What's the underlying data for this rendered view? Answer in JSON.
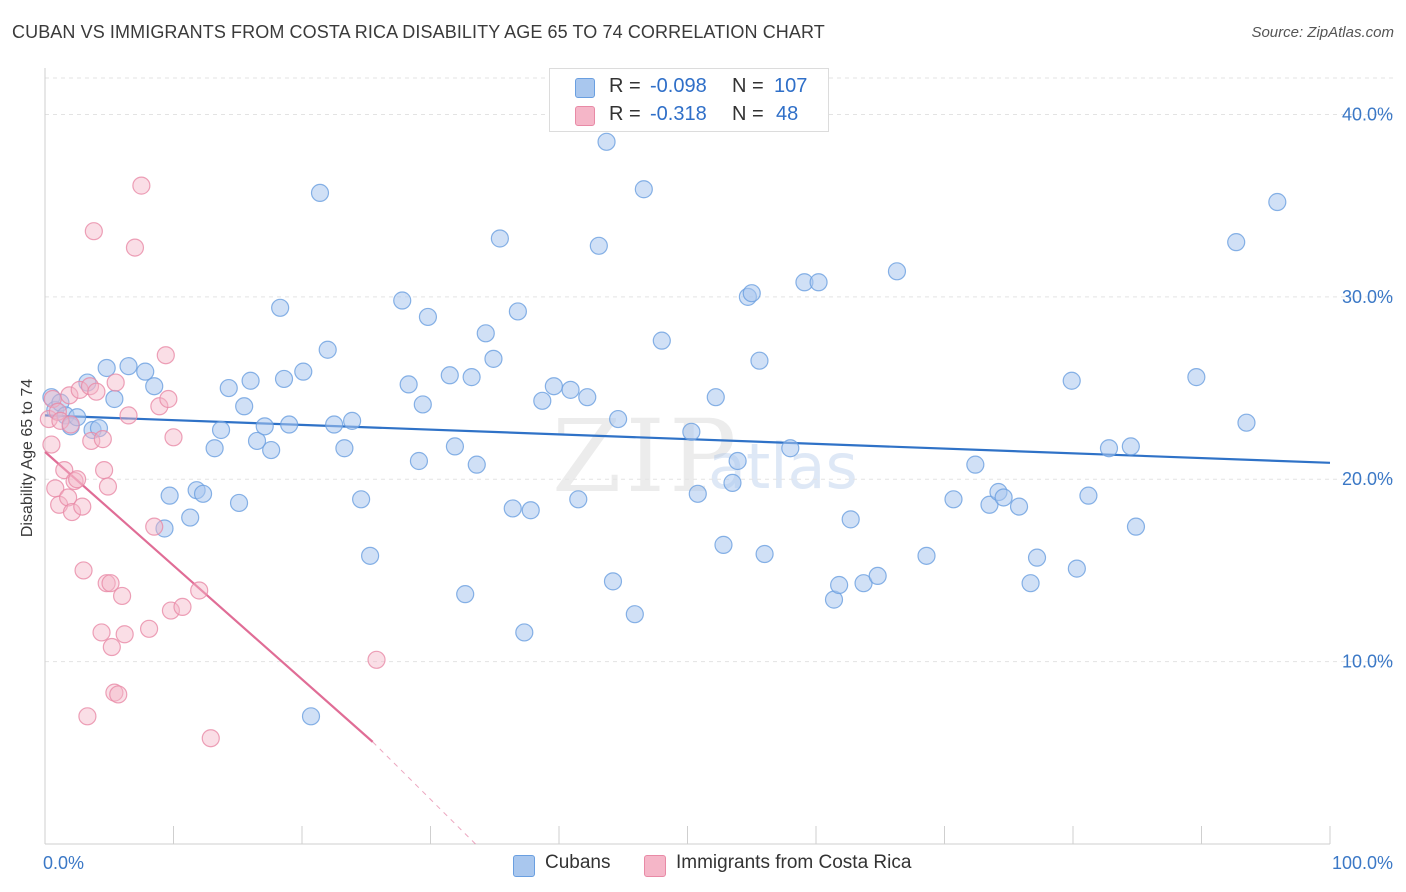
{
  "title": "CUBAN VS IMMIGRANTS FROM COSTA RICA DISABILITY AGE 65 TO 74 CORRELATION CHART",
  "source": "Source: ZipAtlas.com",
  "watermark": {
    "zip": "ZIP",
    "atlas": "atlas"
  },
  "legend": {
    "rows": [
      {
        "r_label": "R = ",
        "r_value": "-0.098",
        "n_label": "N = ",
        "n_value": "107",
        "color": "#a9c7ee"
      },
      {
        "r_label": "R = ",
        "r_value": "-0.318",
        "n_label": "N = ",
        "n_value": "48",
        "color": "#f5b6c8"
      }
    ]
  },
  "bottom_legend": [
    {
      "label": "Cubans",
      "color": "#a9c7ee"
    },
    {
      "label": "Immigrants from Costa Rica",
      "color": "#f5b6c8"
    }
  ],
  "chart_data": {
    "type": "scatter",
    "title": "CUBAN VS IMMIGRANTS FROM COSTA RICA DISABILITY AGE 65 TO 74 CORRELATION CHART",
    "xlabel": "",
    "ylabel": "Disability Age 65 to 74",
    "xlim": [
      0,
      100
    ],
    "ylim": [
      0,
      42
    ],
    "x_tick_labels": {
      "left": "0.0%",
      "right": "100.0%"
    },
    "y_ticks": [
      {
        "value": 10,
        "label": "10.0%"
      },
      {
        "value": 20,
        "label": "20.0%"
      },
      {
        "value": 30,
        "label": "30.0%"
      },
      {
        "value": 40,
        "label": "40.0%"
      }
    ],
    "grid": true,
    "series": [
      {
        "name": "Cubans",
        "color": "#6a9fe0",
        "fill": "#a9c7ee",
        "trend": {
          "x": [
            0,
            100
          ],
          "y": [
            23.5,
            20.9
          ],
          "color": "#2f72c7"
        },
        "points": [
          [
            0.5,
            24.5
          ],
          [
            0.8,
            23.8
          ],
          [
            1.2,
            24.2
          ],
          [
            1.6,
            23.5
          ],
          [
            2.0,
            22.9
          ],
          [
            2.5,
            23.4
          ],
          [
            3.3,
            25.3
          ],
          [
            3.7,
            22.7
          ],
          [
            4.2,
            22.8
          ],
          [
            4.8,
            26.1
          ],
          [
            5.4,
            24.4
          ],
          [
            6.5,
            26.2
          ],
          [
            7.8,
            25.9
          ],
          [
            8.5,
            25.1
          ],
          [
            9.3,
            17.3
          ],
          [
            9.7,
            19.1
          ],
          [
            11.3,
            17.9
          ],
          [
            11.8,
            19.4
          ],
          [
            12.3,
            19.2
          ],
          [
            13.2,
            21.7
          ],
          [
            13.7,
            22.7
          ],
          [
            14.3,
            25.0
          ],
          [
            15.1,
            18.7
          ],
          [
            15.5,
            24.0
          ],
          [
            16.0,
            25.4
          ],
          [
            16.5,
            22.1
          ],
          [
            17.1,
            22.9
          ],
          [
            17.6,
            21.6
          ],
          [
            18.3,
            29.4
          ],
          [
            18.6,
            25.5
          ],
          [
            19.0,
            23.0
          ],
          [
            20.1,
            25.9
          ],
          [
            20.7,
            7.0
          ],
          [
            21.4,
            35.7
          ],
          [
            22.0,
            27.1
          ],
          [
            22.5,
            23.0
          ],
          [
            23.3,
            21.7
          ],
          [
            23.9,
            23.2
          ],
          [
            24.6,
            18.9
          ],
          [
            25.3,
            15.8
          ],
          [
            27.8,
            29.8
          ],
          [
            28.3,
            25.2
          ],
          [
            29.1,
            21.0
          ],
          [
            29.4,
            24.1
          ],
          [
            29.8,
            28.9
          ],
          [
            31.5,
            25.7
          ],
          [
            31.9,
            21.8
          ],
          [
            32.7,
            13.7
          ],
          [
            33.2,
            25.6
          ],
          [
            33.6,
            20.8
          ],
          [
            34.3,
            28.0
          ],
          [
            34.9,
            26.6
          ],
          [
            35.4,
            33.2
          ],
          [
            36.4,
            18.4
          ],
          [
            36.8,
            29.2
          ],
          [
            37.3,
            11.6
          ],
          [
            37.8,
            18.3
          ],
          [
            38.7,
            24.3
          ],
          [
            39.6,
            25.1
          ],
          [
            40.9,
            24.9
          ],
          [
            41.5,
            18.9
          ],
          [
            42.2,
            24.5
          ],
          [
            43.1,
            32.8
          ],
          [
            43.7,
            38.5
          ],
          [
            44.2,
            14.4
          ],
          [
            44.6,
            23.3
          ],
          [
            45.9,
            12.6
          ],
          [
            46.6,
            35.9
          ],
          [
            48.0,
            27.6
          ],
          [
            50.3,
            22.6
          ],
          [
            50.8,
            19.2
          ],
          [
            52.2,
            24.5
          ],
          [
            52.8,
            16.4
          ],
          [
            53.5,
            19.8
          ],
          [
            53.9,
            21.0
          ],
          [
            54.7,
            30.0
          ],
          [
            55.0,
            30.2
          ],
          [
            55.6,
            26.5
          ],
          [
            56.0,
            15.9
          ],
          [
            58.0,
            21.7
          ],
          [
            59.1,
            30.8
          ],
          [
            60.2,
            30.8
          ],
          [
            61.4,
            13.4
          ],
          [
            61.8,
            14.2
          ],
          [
            62.7,
            17.8
          ],
          [
            63.7,
            14.3
          ],
          [
            64.8,
            14.7
          ],
          [
            66.3,
            31.4
          ],
          [
            68.6,
            15.8
          ],
          [
            70.7,
            18.9
          ],
          [
            72.4,
            20.8
          ],
          [
            73.5,
            18.6
          ],
          [
            74.2,
            19.3
          ],
          [
            74.6,
            19.0
          ],
          [
            75.8,
            18.5
          ],
          [
            76.7,
            14.3
          ],
          [
            77.2,
            15.7
          ],
          [
            79.9,
            25.4
          ],
          [
            80.3,
            15.1
          ],
          [
            81.2,
            19.1
          ],
          [
            82.8,
            21.7
          ],
          [
            84.5,
            21.8
          ],
          [
            84.9,
            17.4
          ],
          [
            89.6,
            25.6
          ],
          [
            92.7,
            33.0
          ],
          [
            93.5,
            23.1
          ],
          [
            95.9,
            35.2
          ]
        ]
      },
      {
        "name": "Immigrants from Costa Rica",
        "color": "#e88aa6",
        "fill": "#f5b6c8",
        "trend": {
          "x": [
            0,
            25.5
          ],
          "y": [
            21.5,
            5.6
          ],
          "dashed_to": {
            "x": 33.5,
            "y": 0
          },
          "color": "#e06d96"
        },
        "points": [
          [
            0.3,
            23.3
          ],
          [
            0.5,
            21.9
          ],
          [
            0.6,
            24.4
          ],
          [
            0.8,
            19.5
          ],
          [
            1.0,
            23.7
          ],
          [
            1.1,
            18.6
          ],
          [
            1.2,
            23.2
          ],
          [
            1.5,
            20.5
          ],
          [
            1.8,
            19.0
          ],
          [
            1.9,
            24.6
          ],
          [
            2.0,
            23.0
          ],
          [
            2.1,
            18.2
          ],
          [
            2.3,
            19.9
          ],
          [
            2.5,
            20.0
          ],
          [
            2.7,
            24.9
          ],
          [
            2.9,
            18.5
          ],
          [
            3.0,
            15.0
          ],
          [
            3.3,
            7.0
          ],
          [
            3.5,
            25.1
          ],
          [
            3.6,
            22.1
          ],
          [
            3.8,
            33.6
          ],
          [
            4.0,
            24.8
          ],
          [
            4.4,
            11.6
          ],
          [
            4.5,
            22.2
          ],
          [
            4.6,
            20.5
          ],
          [
            4.8,
            14.3
          ],
          [
            4.9,
            19.6
          ],
          [
            5.1,
            14.3
          ],
          [
            5.2,
            10.8
          ],
          [
            5.4,
            8.3
          ],
          [
            5.5,
            25.3
          ],
          [
            5.7,
            8.2
          ],
          [
            6.0,
            13.6
          ],
          [
            6.2,
            11.5
          ],
          [
            6.5,
            23.5
          ],
          [
            7.0,
            32.7
          ],
          [
            7.5,
            36.1
          ],
          [
            8.1,
            11.8
          ],
          [
            8.5,
            17.4
          ],
          [
            8.9,
            24.0
          ],
          [
            9.4,
            26.8
          ],
          [
            9.6,
            24.4
          ],
          [
            9.8,
            12.8
          ],
          [
            10.0,
            22.3
          ],
          [
            10.7,
            13.0
          ],
          [
            12.0,
            13.9
          ],
          [
            12.9,
            5.8
          ],
          [
            25.8,
            10.1
          ]
        ]
      }
    ]
  }
}
